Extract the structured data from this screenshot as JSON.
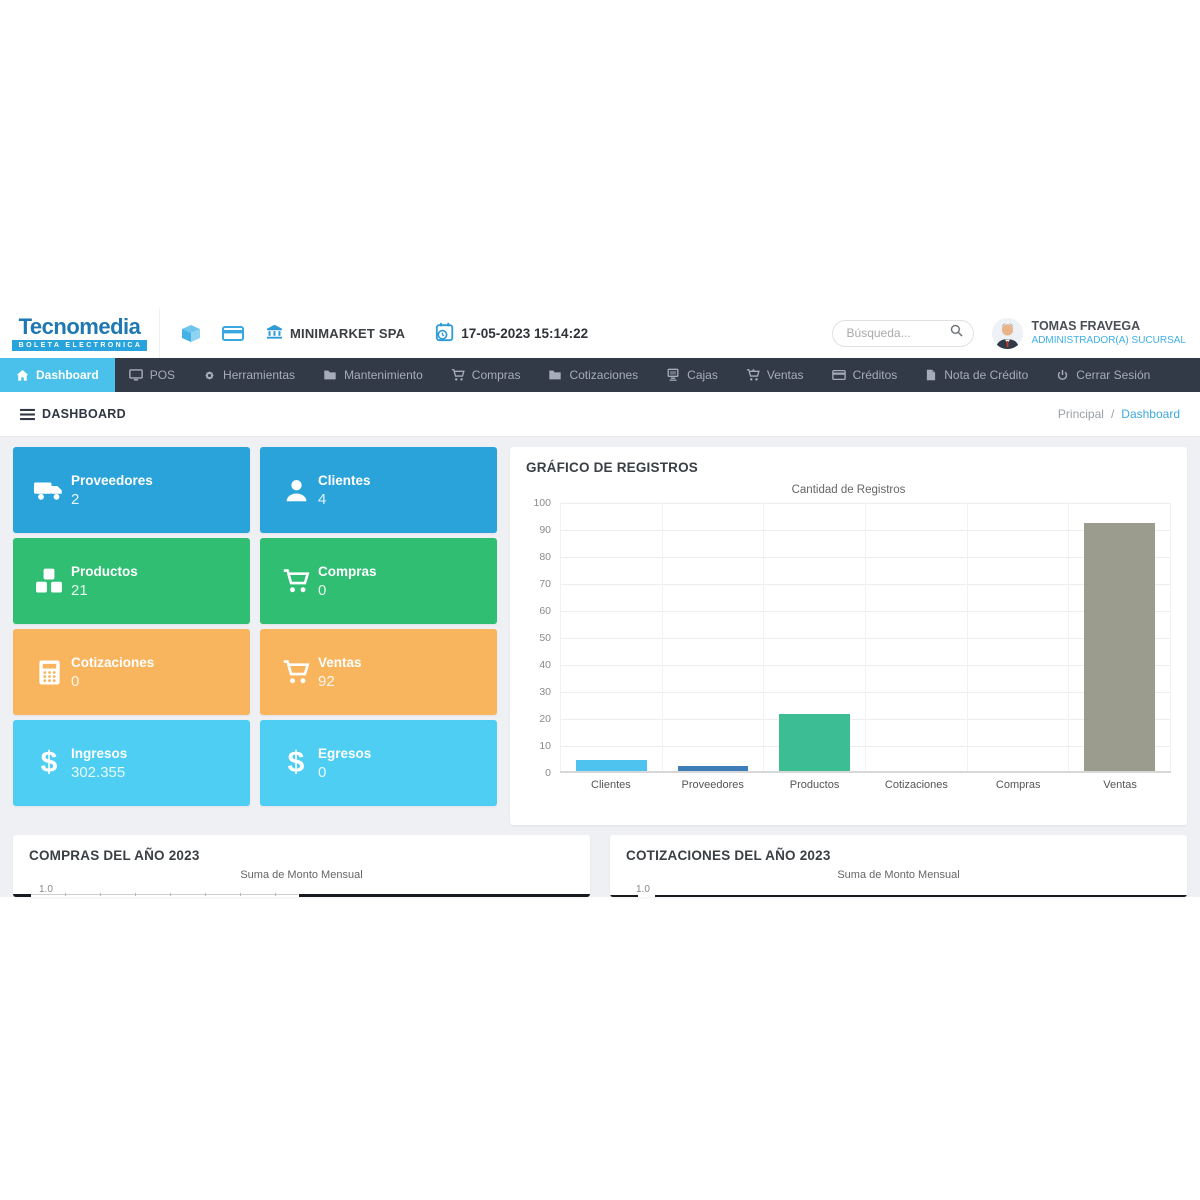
{
  "header": {
    "logo_name": "Tecnomedia",
    "logo_tagline": "BOLETA ELECTRONICA",
    "company_name": "MINIMARKET SPA",
    "datetime": "17-05-2023 15:14:22",
    "search_placeholder": "Búsqueda...",
    "user_name": "TOMAS FRAVEGA",
    "user_role": "ADMINISTRADOR(A) SUCURSAL"
  },
  "nav": {
    "items": [
      {
        "label": "Dashboard",
        "active": true
      },
      {
        "label": "POS"
      },
      {
        "label": "Herramientas"
      },
      {
        "label": "Mantenimiento"
      },
      {
        "label": "Compras"
      },
      {
        "label": "Cotizaciones"
      },
      {
        "label": "Cajas"
      },
      {
        "label": "Ventas"
      },
      {
        "label": "Créditos"
      },
      {
        "label": "Nota de Crédito"
      },
      {
        "label": "Cerrar Sesión"
      }
    ]
  },
  "breadcrumb": {
    "page_title": "DASHBOARD",
    "parent": "Principal",
    "separator": "/",
    "current": "Dashboard"
  },
  "stat_cards": [
    {
      "label": "Proveedores",
      "value": "2",
      "color": "#2aa3db",
      "icon": "truck-icon"
    },
    {
      "label": "Clientes",
      "value": "4",
      "color": "#2aa3db",
      "icon": "user-icon"
    },
    {
      "label": "Productos",
      "value": "21",
      "color": "#2fbe72",
      "icon": "cubes-icon"
    },
    {
      "label": "Compras",
      "value": "0",
      "color": "#2fbe72",
      "icon": "cart-icon"
    },
    {
      "label": "Cotizaciones",
      "value": "0",
      "color": "#f8b55e",
      "icon": "calculator-icon"
    },
    {
      "label": "Ventas",
      "value": "92",
      "color": "#f8b55e",
      "icon": "cart-icon"
    },
    {
      "label": "Ingresos",
      "value": "302.355",
      "color": "#4dcef2",
      "icon": "dollar-icon"
    },
    {
      "label": "Egresos",
      "value": "0",
      "color": "#4dcef2",
      "icon": "dollar-icon"
    }
  ],
  "colors": {
    "nav_bg": "#323947",
    "nav_active": "#4ac1ea",
    "accent_blue": "#29a3dc",
    "page_bg": "#eef0f4"
  },
  "chart_data": [
    {
      "type": "bar",
      "card_title": "GRÁFICO DE REGISTROS",
      "title": "Cantidad de Registros",
      "categories": [
        "Clientes",
        "Proveedores",
        "Productos",
        "Cotizaciones",
        "Compras",
        "Ventas"
      ],
      "values": [
        4,
        2,
        21,
        0,
        0,
        92
      ],
      "bar_colors": [
        "#4fc3f0",
        "#3d7eb8",
        "#3dbd94",
        "#3dbd94",
        "#3dbd94",
        "#9c9c8e"
      ],
      "xlabel": "",
      "ylabel": "",
      "ylim": [
        0,
        100
      ],
      "yticks": [
        "100",
        "90",
        "80",
        "70",
        "60",
        "50",
        "40",
        "30",
        "20",
        "10",
        "0"
      ],
      "grid": true,
      "legend": "none"
    },
    {
      "type": "bar",
      "card_title": "COMPRAS DEL AÑO 2023",
      "title": "Suma de Monto Mensual",
      "visible_ytick": "1.0"
    },
    {
      "type": "bar",
      "card_title": "COTIZACIONES DEL AÑO 2023",
      "title": "Suma de Monto Mensual",
      "visible_ytick": "1.0"
    }
  ]
}
